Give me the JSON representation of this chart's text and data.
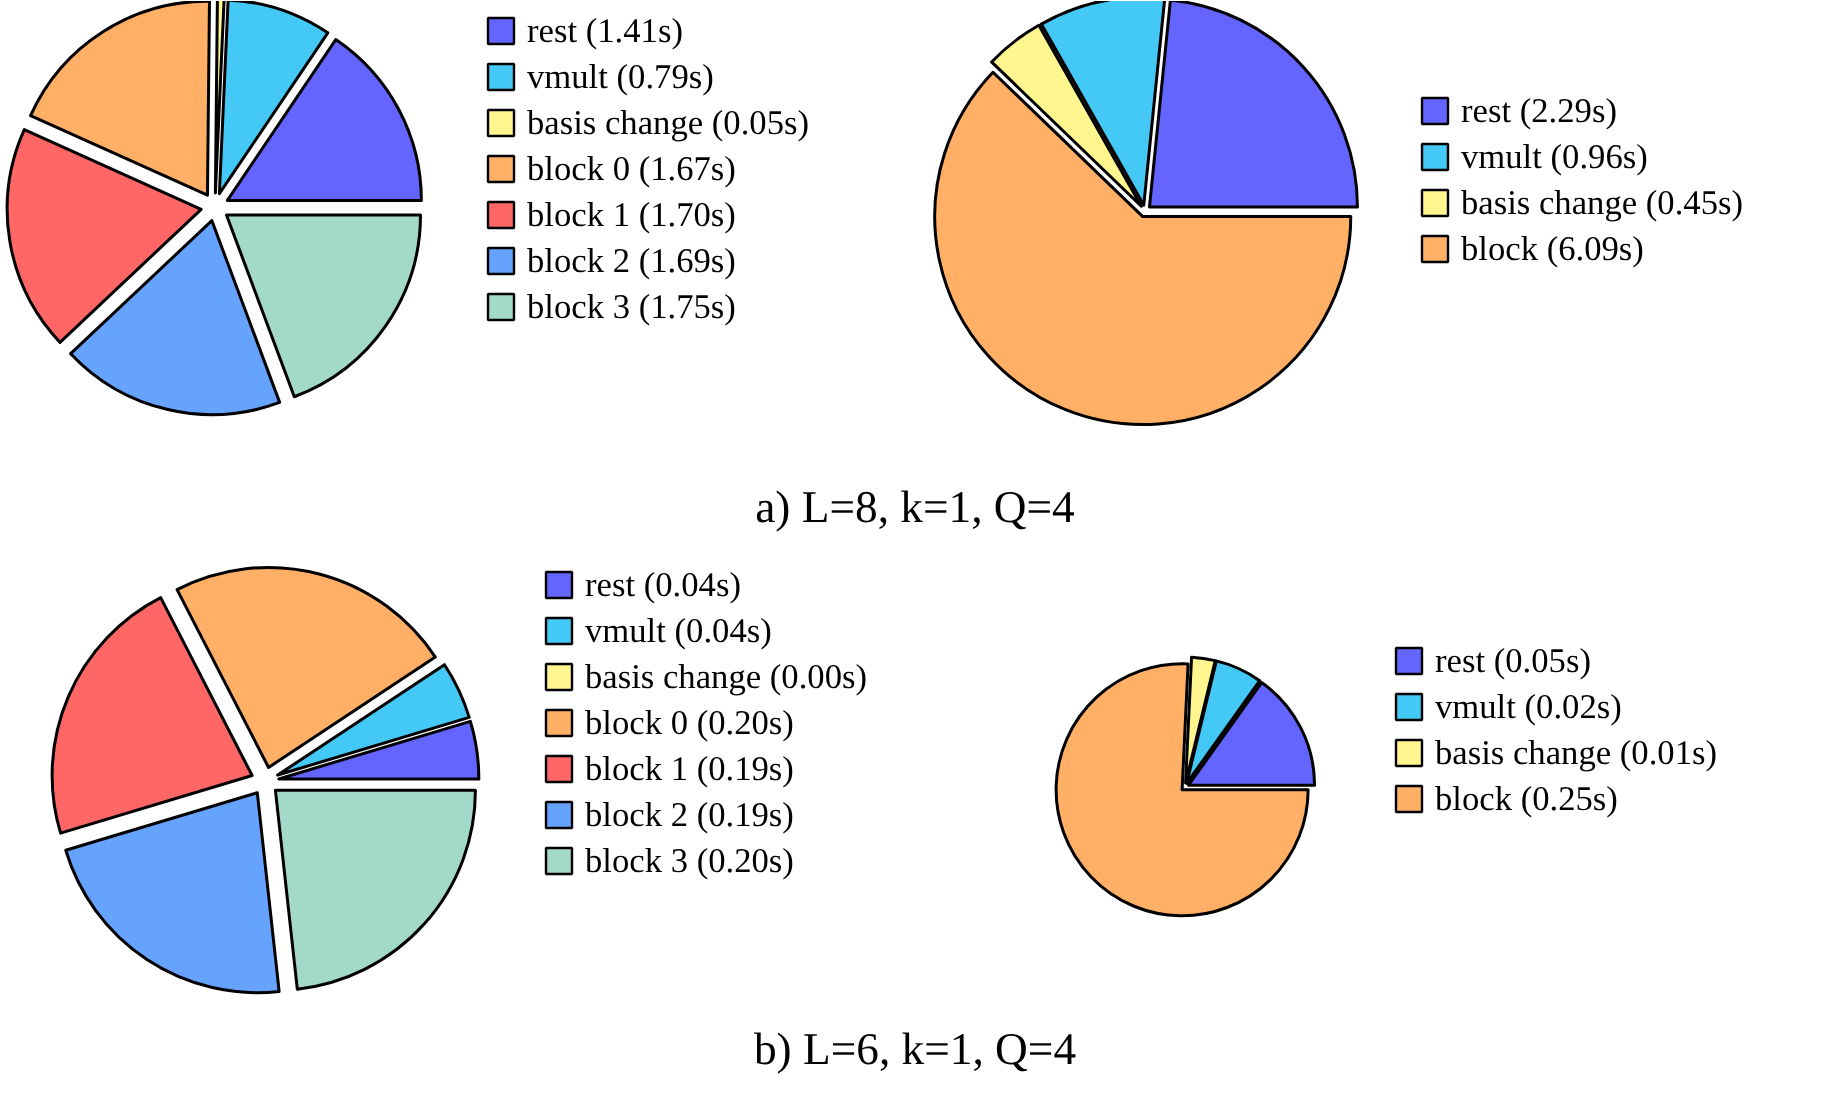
{
  "chart_data": [
    {
      "type": "pie",
      "categories": [
        "rest (1.41s)",
        "vmult (0.79s)",
        "basis change (0.05s)",
        "block 0 (1.67s)",
        "block 1 (1.70s)",
        "block 2 (1.69s)",
        "block 3 (1.75s)"
      ],
      "values": [
        1.41,
        0.79,
        0.05,
        1.67,
        1.7,
        1.69,
        1.75
      ],
      "colors": [
        "#6464ff",
        "#44c8f5",
        "#fff68f",
        "#ffb066",
        "#ff6666",
        "#66a3ff",
        "#a3d9c9"
      ],
      "legend": "right"
    },
    {
      "type": "pie",
      "categories": [
        "rest (2.29s)",
        "vmult (0.96s)",
        "basis change (0.45s)",
        "block (6.09s)"
      ],
      "values": [
        2.29,
        0.96,
        0.45,
        6.09
      ],
      "colors": [
        "#6464ff",
        "#44c8f5",
        "#fff68f",
        "#ffb066"
      ],
      "legend": "right",
      "annotations": [
        "a) L=8, k=1, Q=4"
      ]
    },
    {
      "type": "pie",
      "categories": [
        "rest (0.04s)",
        "vmult (0.04s)",
        "basis change (0.00s)",
        "block 0 (0.20s)",
        "block 1 (0.19s)",
        "block 2 (0.19s)",
        "block 3 (0.20s)"
      ],
      "values": [
        0.04,
        0.04,
        0.0,
        0.2,
        0.19,
        0.19,
        0.2
      ],
      "colors": [
        "#6464ff",
        "#44c8f5",
        "#fff68f",
        "#ffb066",
        "#ff6666",
        "#66a3ff",
        "#a3d9c9"
      ],
      "legend": "right"
    },
    {
      "type": "pie",
      "categories": [
        "rest (0.05s)",
        "vmult (0.02s)",
        "basis change (0.01s)",
        "block (0.25s)"
      ],
      "values": [
        0.05,
        0.02,
        0.01,
        0.25
      ],
      "colors": [
        "#6464ff",
        "#44c8f5",
        "#fff68f",
        "#ffb066"
      ],
      "legend": "right",
      "annotations": [
        "b) L=6, k=1, Q=4"
      ]
    }
  ]
}
